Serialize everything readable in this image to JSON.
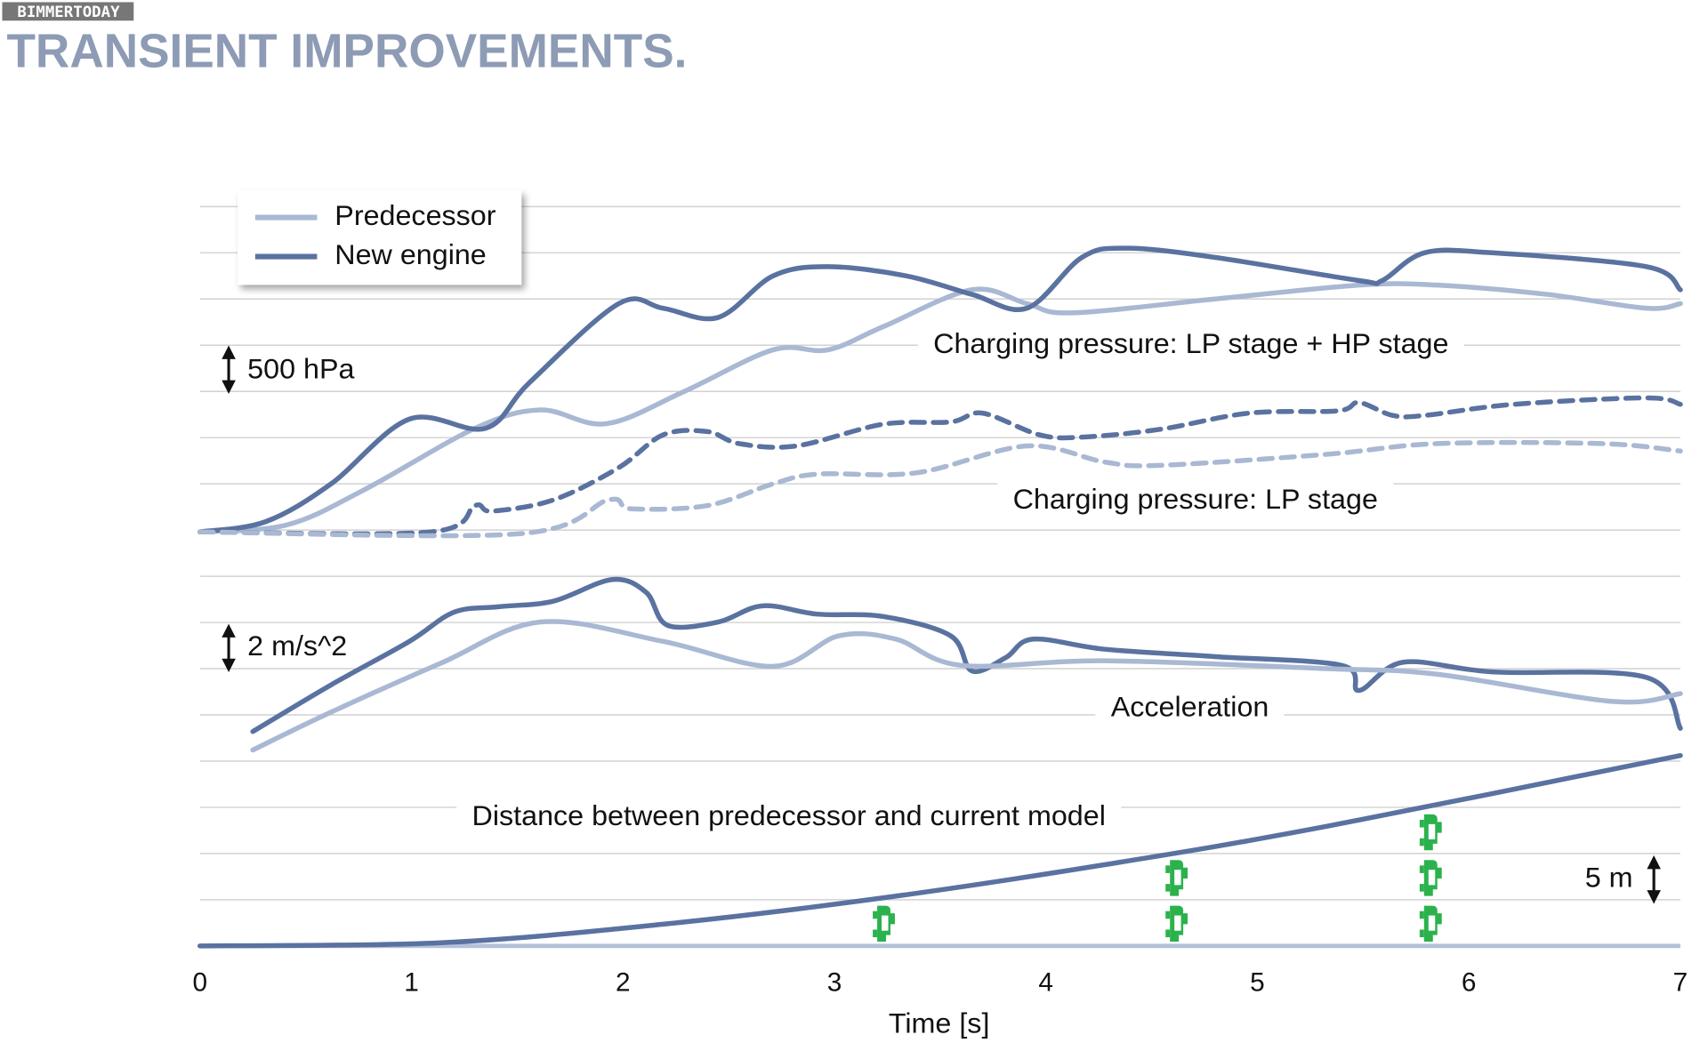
{
  "watermark": "BIMMERTODAY",
  "chart_data": {
    "type": "line",
    "title": "TRANSIENT IMPROVEMENTS.",
    "xlabel": "Time [s]",
    "xlim": [
      0,
      7
    ],
    "xticks": [
      0,
      1,
      2,
      3,
      4,
      5,
      6,
      7
    ],
    "ylim": [
      0,
      16
    ],
    "yticks": [
      0,
      1,
      2,
      3,
      4,
      5,
      6,
      7,
      8,
      9,
      10,
      11,
      12,
      13,
      14,
      15,
      16
    ],
    "grid": true,
    "legend": "upper left",
    "series": [
      {
        "name": "Predecessor",
        "color": "#a9b8d3",
        "dash": false,
        "x": [
          0,
          0.41,
          0.78,
          1.3,
          1.61,
          1.92,
          2.29,
          2.71,
          2.97,
          3.23,
          3.65,
          3.91,
          4.12,
          4.8,
          5.48,
          5.85,
          6.37,
          6.84,
          7
        ],
        "values": [
          8.96,
          9.11,
          9.88,
          11.2,
          11.6,
          11.3,
          12.0,
          12.9,
          12.9,
          13.4,
          14.2,
          13.9,
          13.7,
          14.0,
          14.3,
          14.3,
          14.1,
          13.8,
          13.9
        ]
      },
      {
        "name": "New engine",
        "color": "#5a72a0",
        "dash": false,
        "x": [
          0,
          0.31,
          0.62,
          0.99,
          1.35,
          1.56,
          1.98,
          2.19,
          2.45,
          2.71,
          2.97,
          3.34,
          3.65,
          3.91,
          4.17,
          4.38,
          4.8,
          5.48,
          5.59,
          5.79,
          6.11,
          6.84,
          7
        ],
        "values": [
          8.96,
          9.18,
          10.0,
          11.4,
          11.2,
          12.2,
          13.9,
          13.8,
          13.6,
          14.5,
          14.7,
          14.5,
          14.1,
          13.8,
          14.9,
          15.1,
          14.9,
          14.4,
          14.4,
          15.0,
          15.0,
          14.7,
          14.2
        ]
      },
      {
        "name": "New engine",
        "color": "#5a72a0",
        "dash": true,
        "x": [
          0,
          1.09,
          1.3,
          1.38,
          1.67,
          1.98,
          2.19,
          2.4,
          2.55,
          2.82,
          3.23,
          3.55,
          3.7,
          3.97,
          4.17,
          4.54,
          4.96,
          5.38,
          5.48,
          5.64,
          5.79,
          6.21,
          6.84,
          7
        ],
        "values": [
          8.96,
          8.96,
          9.53,
          9.41,
          9.65,
          10.35,
          11.06,
          11.13,
          10.87,
          10.82,
          11.29,
          11.34,
          11.53,
          11.06,
          11.01,
          11.18,
          11.53,
          11.58,
          11.76,
          11.48,
          11.48,
          11.72,
          11.86,
          11.72
        ]
      },
      {
        "name": "Predecessor",
        "color": "#a9b8d3",
        "dash": true,
        "x": [
          0,
          1.51,
          1.93,
          2.04,
          2.4,
          2.71,
          2.92,
          3.39,
          3.91,
          4.28,
          4.54,
          5.33,
          5.85,
          6.63,
          7
        ],
        "values": [
          8.96,
          8.92,
          9.65,
          9.46,
          9.53,
          10.0,
          10.21,
          10.24,
          10.82,
          10.47,
          10.4,
          10.64,
          10.87,
          10.87,
          10.71
        ]
      },
      {
        "name": "New engine",
        "color": "#5a72a0",
        "dash": false,
        "x": [
          0.25,
          0.62,
          0.99,
          1.2,
          1.41,
          1.67,
          1.95,
          2.11,
          2.21,
          2.45,
          2.66,
          2.92,
          3.23,
          3.55,
          3.65,
          3.81,
          3.94,
          4.28,
          4.8,
          5.4,
          5.48,
          5.69,
          6.11,
          6.84,
          7
        ],
        "values": [
          4.64,
          5.65,
          6.59,
          7.22,
          7.34,
          7.46,
          7.93,
          7.65,
          6.94,
          7.01,
          7.36,
          7.18,
          7.13,
          6.71,
          5.95,
          6.24,
          6.64,
          6.42,
          6.26,
          6.07,
          5.53,
          6.14,
          5.93,
          5.81,
          4.71
        ]
      },
      {
        "name": "Predecessor",
        "color": "#a9b8d3",
        "dash": false,
        "x": [
          0.25,
          0.62,
          1.14,
          1.61,
          2.19,
          2.71,
          3.02,
          3.29,
          3.6,
          4.28,
          5.33,
          5.85,
          6.68,
          7
        ],
        "values": [
          4.24,
          5.06,
          6.12,
          7.01,
          6.59,
          6.05,
          6.71,
          6.64,
          6.07,
          6.17,
          6.0,
          5.88,
          5.29,
          5.46
        ]
      },
      {
        "name": "New engine",
        "color": "#5a72a0",
        "dash": false,
        "x": [
          0,
          1.14,
          2.19,
          3.23,
          4.28,
          5.33,
          7
        ],
        "values": [
          0,
          0.07,
          0.47,
          1.04,
          1.76,
          2.59,
          4.12
        ]
      }
    ],
    "annotations": [
      "Charging pressure: LP stage + HP stage",
      "Charging pressure: LP stage",
      "Acceleration",
      "Distance between predecessor and current model"
    ],
    "scale_bars": [
      "500 hPa",
      "2 m/s^2",
      "5 m"
    ]
  }
}
